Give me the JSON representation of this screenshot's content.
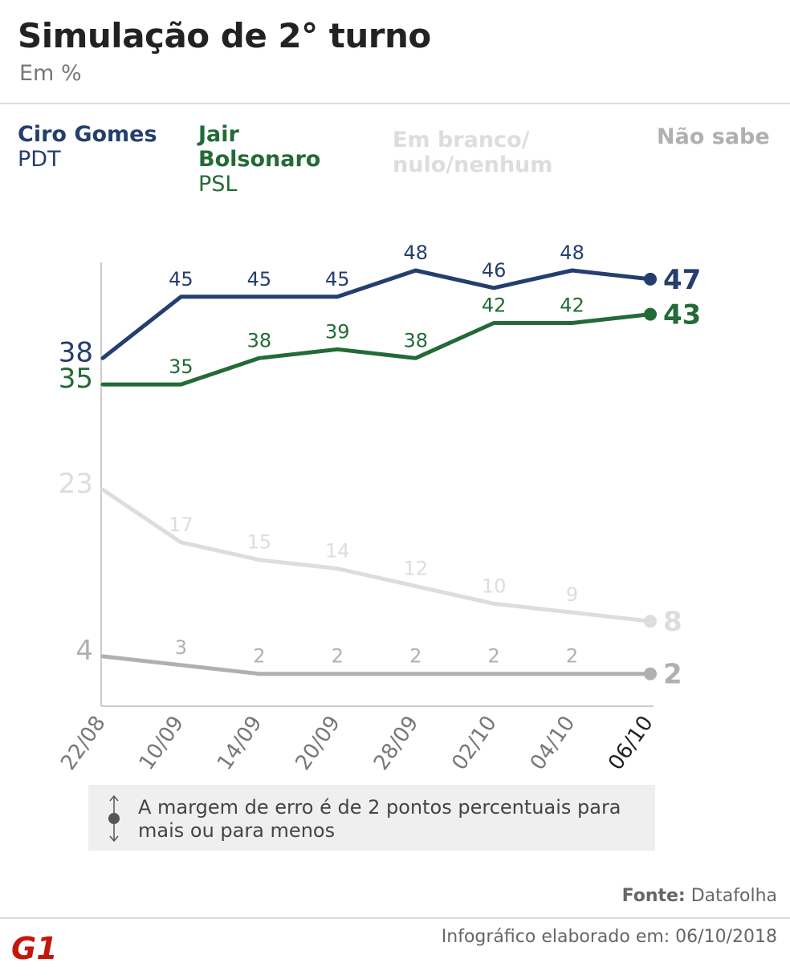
{
  "header": {
    "title": "Simulação de 2° turno",
    "subtitle": "Em %"
  },
  "legend": [
    {
      "name": "Ciro Gomes",
      "party": "PDT"
    },
    {
      "name": "Jair Bolsonaro",
      "party": "PSL"
    },
    {
      "name": "Em branco/ nulo/nenhum",
      "party": ""
    },
    {
      "name": "Não sabe",
      "party": ""
    }
  ],
  "colors": {
    "ciro": "#243e6e",
    "bolsonaro": "#236b36",
    "branco": "#dddddd",
    "naosabe": "#b0b0b0",
    "axis": "#cccccc"
  },
  "chart_data": {
    "type": "line",
    "x": [
      "22/08",
      "10/09",
      "14/09",
      "20/09",
      "28/09",
      "02/10",
      "04/10",
      "06/10"
    ],
    "series": [
      {
        "name": "Ciro Gomes",
        "values": [
          38,
          45,
          45,
          45,
          48,
          46,
          48,
          47
        ]
      },
      {
        "name": "Jair Bolsonaro",
        "values": [
          35,
          35,
          38,
          39,
          38,
          42,
          42,
          43
        ]
      },
      {
        "name": "Em branco/ nulo/nenhum",
        "values": [
          23,
          17,
          15,
          14,
          12,
          10,
          9,
          8
        ]
      },
      {
        "name": "Não sabe",
        "values": [
          4,
          3,
          2,
          2,
          2,
          2,
          2,
          2
        ]
      }
    ],
    "title": "Simulação de 2° turno",
    "ylabel": "Em %"
  },
  "note": {
    "text": "A margem de erro é de 2 pontos percentuais para mais ou para menos"
  },
  "footer": {
    "source_label": "Fonte:",
    "source_value": "Datafolha",
    "credit": "Infográfico elaborado em: 06/10/2018",
    "logo_text": "G1",
    "logo_color": "#c4170c"
  }
}
